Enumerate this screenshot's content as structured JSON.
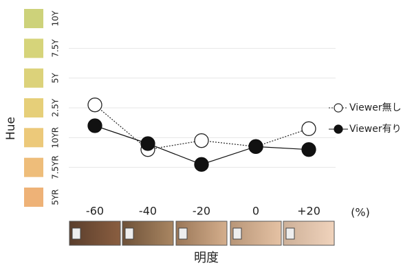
{
  "chart_data": {
    "type": "line",
    "y_label": "Hue",
    "x_label": "明度",
    "x_unit": "(%)",
    "categories": [
      "-60",
      "-40",
      "-20",
      "0",
      "+20"
    ],
    "ylim": [
      0,
      6
    ],
    "yticks": [
      {
        "value": 0,
        "label": "5YR"
      },
      {
        "value": 1,
        "label": "7.5YR"
      },
      {
        "value": 2,
        "label": "10YR"
      },
      {
        "value": 3,
        "label": "2.5Y"
      },
      {
        "value": 4,
        "label": "5Y"
      },
      {
        "value": 5,
        "label": "7.5Y"
      },
      {
        "value": 6,
        "label": "10Y"
      }
    ],
    "ytick_colors": [
      "#eeb277",
      "#eebd7a",
      "#ecc97a",
      "#e6cf79",
      "#dcd27a",
      "#d6d47a",
      "#cdd27a"
    ],
    "grid": true,
    "series": [
      {
        "name": "Viewer無し",
        "color": "#222222",
        "marker": "open",
        "line": "dotted",
        "values": [
          3.1,
          1.6,
          1.9,
          1.7,
          2.3
        ]
      },
      {
        "name": "Viewer有り",
        "color": "#111111",
        "marker": "filled",
        "line": "solid",
        "values": [
          2.4,
          1.8,
          1.1,
          1.7,
          1.6
        ]
      }
    ]
  }
}
